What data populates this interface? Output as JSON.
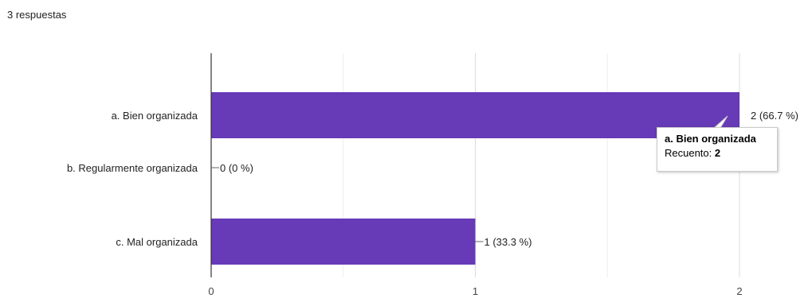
{
  "header": {
    "responses": "3 respuestas"
  },
  "chart_data": {
    "type": "bar",
    "orientation": "horizontal",
    "categories": [
      "a. Bien organizada",
      "b. Regularmente organizada",
      "c. Mal organizada"
    ],
    "values": [
      2,
      0,
      1
    ],
    "data_labels": [
      "2 (66.7 %)",
      "0 (0 %)",
      "1 (33.3 %)"
    ],
    "xlim": [
      0,
      2
    ],
    "x_ticks": [
      "0",
      "1",
      "2"
    ],
    "grid": true,
    "bar_color": "#673ab7",
    "title": "",
    "xlabel": "",
    "ylabel": ""
  },
  "tooltip": {
    "title": "a. Bien organizada",
    "count_label": "Recuento:",
    "count_value": "2"
  }
}
